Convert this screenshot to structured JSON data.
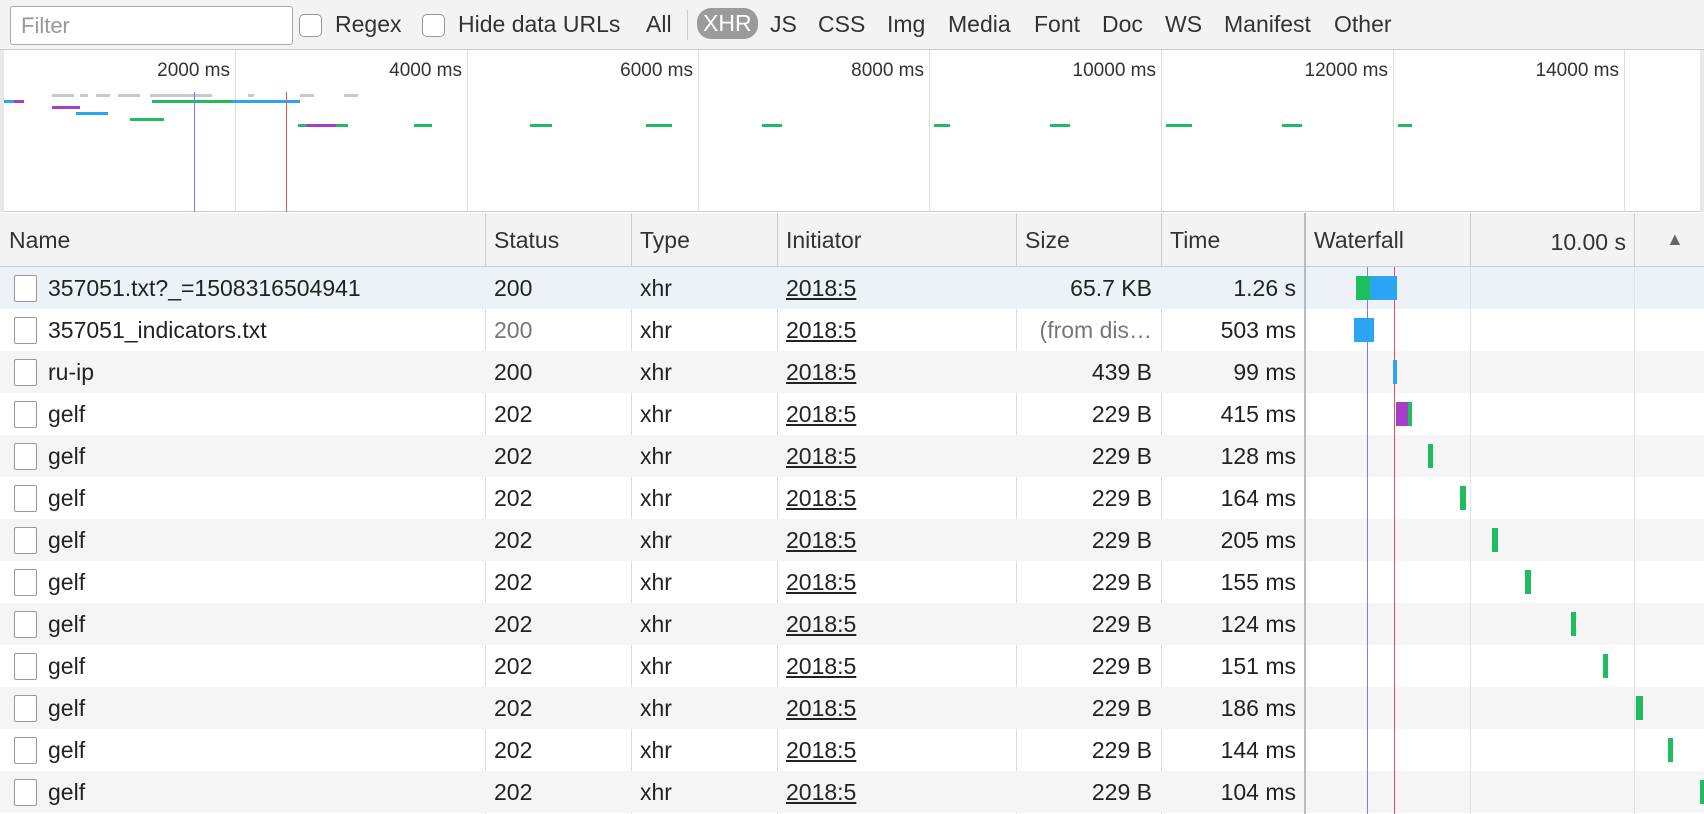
{
  "toolbar": {
    "filter_placeholder": "Filter",
    "regex_label": "Regex",
    "hide_data_urls_label": "Hide data URLs",
    "types": [
      "All",
      "XHR",
      "JS",
      "CSS",
      "Img",
      "Media",
      "Font",
      "Doc",
      "WS",
      "Manifest",
      "Other"
    ],
    "active_type": "XHR"
  },
  "overview": {
    "ticks": [
      "2000 ms",
      "4000 ms",
      "6000 ms",
      "8000 ms",
      "10000 ms",
      "12000 ms",
      "14000 ms"
    ]
  },
  "columns": {
    "name": "Name",
    "status": "Status",
    "type": "Type",
    "initiator": "Initiator",
    "size": "Size",
    "time": "Time",
    "waterfall": "Waterfall",
    "waterfall_scale": "10.00 s"
  },
  "rows": [
    {
      "name": "357051.txt?_=1508316504941",
      "status": "200",
      "type": "xhr",
      "initiator": "2018:5",
      "size": "65.7 KB",
      "time": "1.26 s"
    },
    {
      "name": "357051_indicators.txt",
      "status": "200",
      "type": "xhr",
      "initiator": "2018:5",
      "size": "(from dis…",
      "time": "503 ms"
    },
    {
      "name": "ru-ip",
      "status": "200",
      "type": "xhr",
      "initiator": "2018:5",
      "size": "439 B",
      "time": "99 ms"
    },
    {
      "name": "gelf",
      "status": "202",
      "type": "xhr",
      "initiator": "2018:5",
      "size": "229 B",
      "time": "415 ms"
    },
    {
      "name": "gelf",
      "status": "202",
      "type": "xhr",
      "initiator": "2018:5",
      "size": "229 B",
      "time": "128 ms"
    },
    {
      "name": "gelf",
      "status": "202",
      "type": "xhr",
      "initiator": "2018:5",
      "size": "229 B",
      "time": "164 ms"
    },
    {
      "name": "gelf",
      "status": "202",
      "type": "xhr",
      "initiator": "2018:5",
      "size": "229 B",
      "time": "205 ms"
    },
    {
      "name": "gelf",
      "status": "202",
      "type": "xhr",
      "initiator": "2018:5",
      "size": "229 B",
      "time": "155 ms"
    },
    {
      "name": "gelf",
      "status": "202",
      "type": "xhr",
      "initiator": "2018:5",
      "size": "229 B",
      "time": "124 ms"
    },
    {
      "name": "gelf",
      "status": "202",
      "type": "xhr",
      "initiator": "2018:5",
      "size": "229 B",
      "time": "151 ms"
    },
    {
      "name": "gelf",
      "status": "202",
      "type": "xhr",
      "initiator": "2018:5",
      "size": "229 B",
      "time": "186 ms"
    },
    {
      "name": "gelf",
      "status": "202",
      "type": "xhr",
      "initiator": "2018:5",
      "size": "229 B",
      "time": "144 ms"
    },
    {
      "name": "gelf",
      "status": "202",
      "type": "xhr",
      "initiator": "2018:5",
      "size": "229 B",
      "time": "104 ms"
    }
  ],
  "colors": {
    "waiting": "#1fbd5f",
    "download": "#2ba4f2",
    "stalled": "#a63ec8",
    "dom_content_loaded": "#7a7aff",
    "load": "#e05454"
  }
}
